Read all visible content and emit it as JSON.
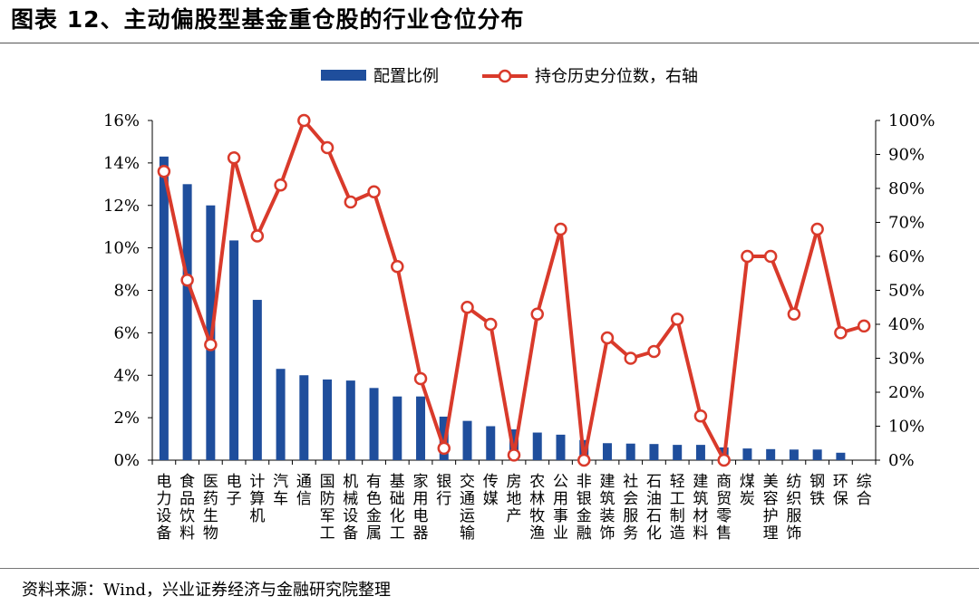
{
  "figure": {
    "title": "图表 12、主动偏股型基金重仓股的行业仓位分布",
    "source": "资料来源：Wind，兴业证券经济与金融研究院整理"
  },
  "colors": {
    "bar": "#1F4E9C",
    "line": "#D93A2B",
    "marker_fill": "#ffffff",
    "axis": "#000000"
  },
  "chart_data": {
    "type": "bar",
    "categories": [
      "电力设备",
      "食品饮料",
      "医药生物",
      "电子",
      "计算机",
      "汽车",
      "通信",
      "国防军工",
      "机械设备",
      "有色金属",
      "基础化工",
      "家用电器",
      "银行",
      "交通运输",
      "传媒",
      "房地产",
      "农林牧渔",
      "公用事业",
      "非银金融",
      "建筑装饰",
      "社会服务",
      "石油石化",
      "轻工制造",
      "建筑材料",
      "商贸零售",
      "煤炭",
      "美容护理",
      "纺织服饰",
      "钢铁",
      "环保",
      "综合"
    ],
    "series": [
      {
        "name": "配置比例",
        "type": "bar",
        "axis": "left",
        "values": [
          14.3,
          13.0,
          12.0,
          10.35,
          7.55,
          4.3,
          4.0,
          3.8,
          3.75,
          3.4,
          3.0,
          3.0,
          2.05,
          1.85,
          1.6,
          1.45,
          1.3,
          1.2,
          0.95,
          0.8,
          0.78,
          0.76,
          0.72,
          0.72,
          0.6,
          0.55,
          0.52,
          0.5,
          0.5,
          0.35,
          0.0
        ]
      },
      {
        "name": "持仓历史分位数，右轴",
        "type": "line",
        "axis": "right",
        "values": [
          85,
          53,
          34,
          89,
          66,
          81,
          100,
          92,
          76,
          79,
          57,
          24,
          3.5,
          45,
          40,
          1.5,
          43,
          68,
          0,
          36,
          30,
          32,
          41.5,
          13,
          0,
          60,
          60,
          43,
          68,
          37.5,
          39.5
        ]
      }
    ],
    "left_axis": {
      "ylim": [
        0,
        16
      ],
      "ticks": [
        "0%",
        "2%",
        "4%",
        "6%",
        "8%",
        "10%",
        "12%",
        "14%",
        "16%"
      ]
    },
    "right_axis": {
      "ylim": [
        0,
        100
      ],
      "ticks": [
        "0%",
        "10%",
        "20%",
        "30%",
        "40%",
        "50%",
        "60%",
        "70%",
        "80%",
        "90%",
        "100%"
      ]
    },
    "legend": {
      "position": "top-center",
      "entries": [
        "配置比例",
        "持仓历史分位数，右轴"
      ]
    },
    "grid": false
  }
}
